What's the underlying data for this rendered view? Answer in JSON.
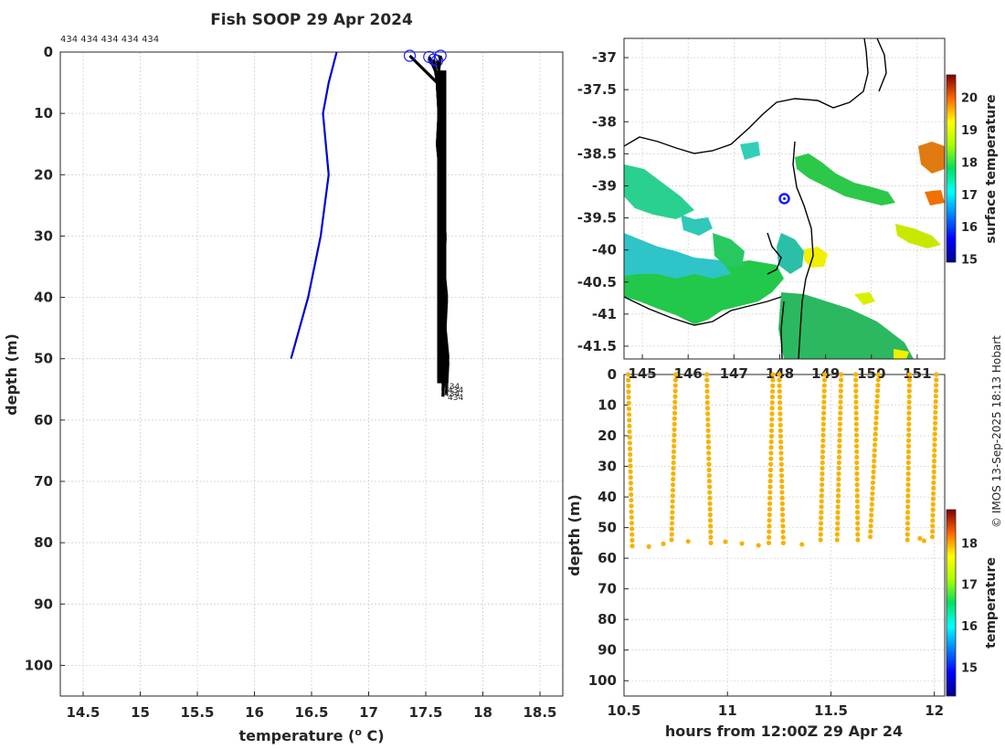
{
  "title": "Fish SOOP 29 Apr 2024",
  "credit": "© IMOS 13-Sep-2025 18:13 Hobart",
  "colors": {
    "grid": "#c8c8c8",
    "profile_blue": "#0000d8",
    "profile_black": "#000000",
    "marker_orange": "#f5b300",
    "marker_ring": "#1a1aff"
  },
  "chart_data": [
    {
      "id": "profile",
      "type": "line",
      "xlabel": "temperature (° C)",
      "xlabel_prefix": "temperature (",
      "xlabel_sup": "o",
      "xlabel_suffix": " C)",
      "ylabel": "depth (m)",
      "xlim": [
        14.3,
        18.7
      ],
      "ylim": [
        105,
        0
      ],
      "xticks": [
        14.5,
        15,
        15.5,
        16,
        16.5,
        17,
        17.5,
        18,
        18.5
      ],
      "xtick_labels": [
        "14.5",
        "15",
        "15.5",
        "16",
        "16.5",
        "17",
        "17.5",
        "18",
        "18.5"
      ],
      "yticks": [
        0,
        10,
        20,
        30,
        40,
        50,
        60,
        70,
        80,
        90,
        100
      ],
      "ytick_labels": [
        "0",
        "10",
        "20",
        "30",
        "40",
        "50",
        "60",
        "70",
        "80",
        "90",
        "100"
      ],
      "top_annotation": "434 434 434 434 434",
      "end_labels": [
        "434",
        "434",
        "434",
        "434"
      ],
      "series": [
        {
          "name": "reference profile",
          "color": "blue",
          "points": [
            [
              16.72,
              0
            ],
            [
              16.65,
              5
            ],
            [
              16.6,
              10
            ],
            [
              16.65,
              20
            ],
            [
              16.58,
              30
            ],
            [
              16.47,
              40
            ],
            [
              16.32,
              50
            ]
          ]
        },
        {
          "name": "fish tag profiles",
          "color": "black",
          "start_markers": [
            [
              17.36,
              0.6
            ],
            [
              17.53,
              0.8
            ],
            [
              17.57,
              1.2
            ],
            [
              17.6,
              1.4
            ],
            [
              17.63,
              0.6
            ]
          ],
          "end_depths": [
            54.2,
            54.6,
            55.2,
            55.8,
            56.2
          ]
        }
      ]
    },
    {
      "id": "sst_map",
      "type": "heatmap",
      "xlim": [
        144.6,
        151.6
      ],
      "ylim": [
        -41.7,
        -36.7
      ],
      "xticks": [
        145,
        146,
        147,
        148,
        149,
        150,
        151
      ],
      "xtick_labels": [
        "145",
        "146",
        "147",
        "148",
        "149",
        "150",
        "151"
      ],
      "yticks": [
        -37,
        -37.5,
        -38,
        -38.5,
        -39,
        -39.5,
        -40,
        -40.5,
        -41,
        -41.5
      ],
      "ytick_labels": [
        "-37",
        "-37.5",
        "-38",
        "-38.5",
        "-39",
        "-39.5",
        "-40",
        "-40.5",
        "-41",
        "-41.5"
      ],
      "position_marker": [
        148.1,
        -39.2
      ],
      "colorbar_label": "surface temperature",
      "colorbar_range": [
        14.9,
        20.7
      ],
      "colorbar_ticks": [
        15,
        16,
        17,
        18,
        19,
        20
      ],
      "colorbar_tick_labels": [
        "15",
        "16",
        "17",
        "18",
        "19",
        "20"
      ]
    },
    {
      "id": "time_depth",
      "type": "scatter",
      "xlabel": "hours from 12:00Z 29 Apr 24",
      "ylabel": "depth (m)",
      "xlim": [
        10.5,
        12.05
      ],
      "ylim": [
        105,
        0
      ],
      "xticks": [
        10.5,
        11,
        11.5,
        12
      ],
      "xtick_labels": [
        "10.5",
        "11",
        "11.5",
        "12"
      ],
      "yticks": [
        0,
        10,
        20,
        30,
        40,
        50,
        60,
        70,
        80,
        90,
        100
      ],
      "ytick_labels": [
        "0",
        "10",
        "20",
        "30",
        "40",
        "50",
        "60",
        "70",
        "80",
        "90",
        "100"
      ],
      "colorbar_label": "temperature",
      "colorbar_range": [
        14.3,
        18.8
      ],
      "colorbar_ticks": [
        15,
        16,
        17,
        18
      ],
      "colorbar_tick_labels": [
        "15",
        "16",
        "17",
        "18"
      ],
      "dives": [
        {
          "t0": 10.52,
          "t1": 10.54,
          "z0": 0,
          "z1": 56
        },
        {
          "t0": 10.75,
          "t1": 10.73,
          "z0": 0,
          "z1": 54
        },
        {
          "t0": 10.9,
          "t1": 10.92,
          "z0": 0,
          "z1": 55
        },
        {
          "t0": 11.22,
          "t1": 11.2,
          "z0": 0,
          "z1": 55
        },
        {
          "t0": 11.25,
          "t1": 11.27,
          "z0": 0,
          "z1": 55
        },
        {
          "t0": 11.47,
          "t1": 11.45,
          "z0": 0,
          "z1": 54
        },
        {
          "t0": 11.55,
          "t1": 11.53,
          "z0": 0,
          "z1": 54
        },
        {
          "t0": 11.62,
          "t1": 11.63,
          "z0": 0,
          "z1": 54
        },
        {
          "t0": 11.73,
          "t1": 11.69,
          "z0": 0,
          "z1": 53
        },
        {
          "t0": 11.88,
          "t1": 11.87,
          "z0": 0,
          "z1": 54
        },
        {
          "t0": 12.01,
          "t1": 11.99,
          "z0": 0,
          "z1": 53
        }
      ],
      "bottom_points": [
        [
          10.62,
          56.2
        ],
        [
          10.69,
          55.3
        ],
        [
          10.81,
          54.5
        ],
        [
          10.99,
          54.6
        ],
        [
          11.07,
          55.2
        ],
        [
          11.15,
          55.8
        ],
        [
          11.36,
          55.5
        ],
        [
          11.93,
          53.5
        ],
        [
          11.95,
          54.3
        ]
      ]
    }
  ]
}
